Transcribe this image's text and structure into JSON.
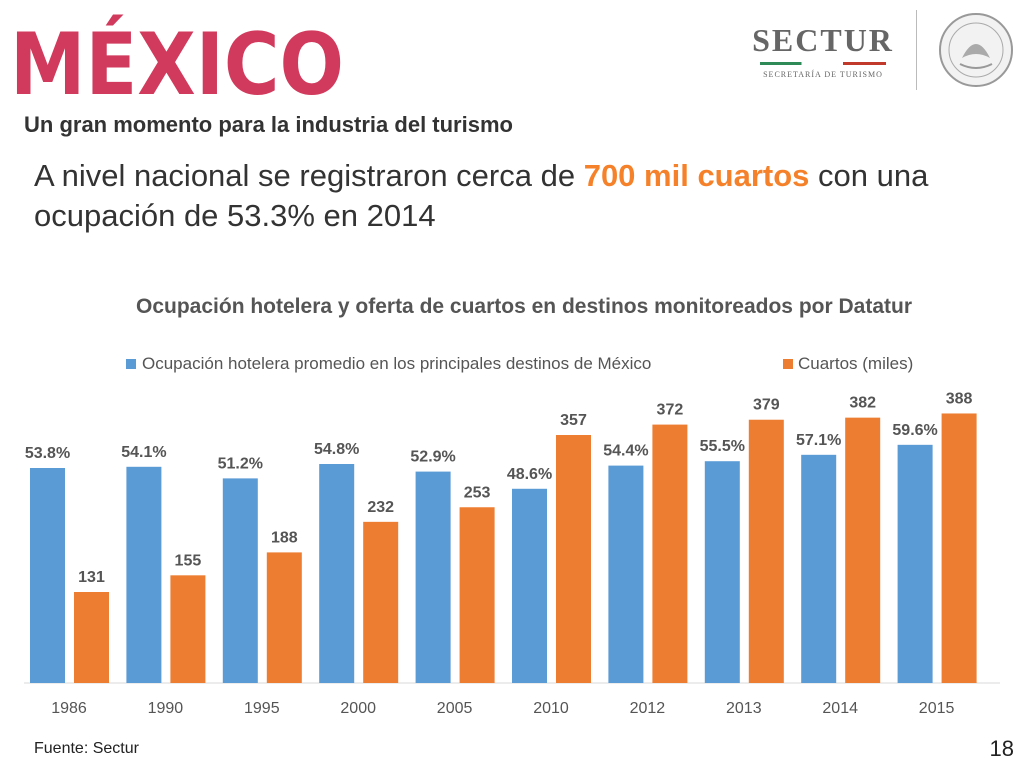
{
  "header": {
    "logo_text": "MÉXICO",
    "sectur_name": "SECTUR",
    "sectur_sub": "SECRETARÍA DE TURISMO"
  },
  "subtitle": "Un gran momento para la industria del turismo",
  "headline": {
    "part1": "A nivel nacional se registraron cerca de ",
    "highlight": "700 mil cuartos",
    "part2": " con una ocupación de 53.3% en 2014"
  },
  "colors": {
    "occupancy": "#5b9bd5",
    "rooms": "#ed7d31",
    "highlight": "#f5822a"
  },
  "chart_data": {
    "type": "bar",
    "title": "Ocupación hotelera y oferta de cuartos en destinos monitoreados por Datatur",
    "categories": [
      "1986",
      "1990",
      "1995",
      "2000",
      "2005",
      "2010",
      "2012",
      "2013",
      "2014",
      "2015"
    ],
    "series": [
      {
        "name": "Ocupación hotelera promedio en los principales destinos de México",
        "values": [
          53.8,
          54.1,
          51.2,
          54.8,
          52.9,
          48.6,
          54.4,
          55.5,
          57.1,
          59.6
        ],
        "labels": [
          "53.8%",
          "54.1%",
          "51.2%",
          "54.8%",
          "52.9%",
          "48.6%",
          "54.4%",
          "55.5%",
          "57.1%",
          "59.6%"
        ]
      },
      {
        "name": "Cuartos (miles)",
        "values": [
          131,
          155,
          188,
          232,
          253,
          357,
          372,
          379,
          382,
          388
        ],
        "labels": [
          "131",
          "155",
          "188",
          "232",
          "253",
          "357",
          "372",
          "379",
          "382",
          "388"
        ]
      }
    ],
    "legend_position": "top",
    "grid": false
  },
  "footer": {
    "source": "Fuente: Sectur",
    "page": "18"
  }
}
